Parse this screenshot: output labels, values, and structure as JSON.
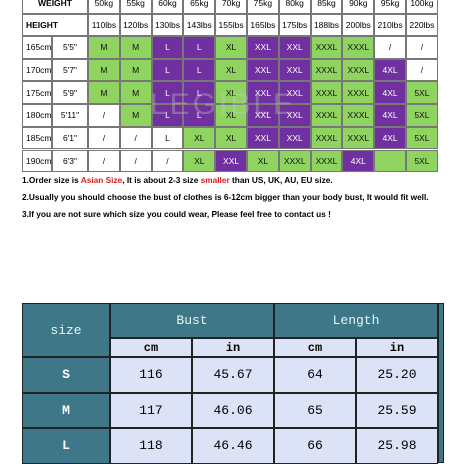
{
  "top_table": {
    "weight_label": "WEIGHT",
    "height_label": "HEIGHT",
    "weights": [
      "50kg",
      "55kg",
      "60kg",
      "65kg",
      "70kg",
      "75kg",
      "80kg",
      "85kg",
      "90kg",
      "95kg",
      "100kg"
    ],
    "lbs": [
      "110lbs",
      "120lbs",
      "130lbs",
      "143lbs",
      "155lbs",
      "165lbs",
      "175lbs",
      "188lbs",
      "200lbs",
      "210lbs",
      "220lbs"
    ],
    "rows": [
      {
        "cm": "165cm",
        "ft": "5'5\"",
        "sizes": [
          "M",
          "M",
          "L",
          "L",
          "XL",
          "XXL",
          "XXL",
          "XXXL",
          "XXXL",
          "/",
          "/"
        ],
        "colors": [
          "#8fd460",
          "#8fd460",
          "#7030a0",
          "#7030a0",
          "#8fd460",
          "#7030a0",
          "#7030a0",
          "#8fd460",
          "#8fd460",
          "#ffffff",
          "#ffffff"
        ]
      },
      {
        "cm": "170cm",
        "ft": "5'7\"",
        "sizes": [
          "M",
          "M",
          "L",
          "L",
          "XL",
          "XXL",
          "XXL",
          "XXXL",
          "XXXL",
          "4XL",
          "/"
        ],
        "colors": [
          "#8fd460",
          "#8fd460",
          "#7030a0",
          "#7030a0",
          "#8fd460",
          "#7030a0",
          "#7030a0",
          "#8fd460",
          "#8fd460",
          "#7030a0",
          "#ffffff"
        ]
      },
      {
        "cm": "175cm",
        "ft": "5'9\"",
        "sizes": [
          "M",
          "M",
          "L",
          "L",
          "XL",
          "XXL",
          "XXL",
          "XXXL",
          "XXXL",
          "4XL",
          "5XL"
        ],
        "colors": [
          "#8fd460",
          "#8fd460",
          "#7030a0",
          "#7030a0",
          "#8fd460",
          "#7030a0",
          "#7030a0",
          "#8fd460",
          "#8fd460",
          "#7030a0",
          "#8fd460"
        ]
      },
      {
        "cm": "180cm",
        "ft": "5'11\"",
        "sizes": [
          "/",
          "M",
          "L",
          "L",
          "XL",
          "XXL",
          "XXL",
          "XXXL",
          "XXXL",
          "4XL",
          "5XL"
        ],
        "colors": [
          "#ffffff",
          "#8fd460",
          "#7030a0",
          "#7030a0",
          "#8fd460",
          "#7030a0",
          "#7030a0",
          "#8fd460",
          "#8fd460",
          "#7030a0",
          "#8fd460"
        ]
      },
      {
        "cm": "185cm",
        "ft": "6'1\"",
        "sizes": [
          "/",
          "/",
          "L",
          "XL",
          "XL",
          "XXL",
          "XXL",
          "XXXL",
          "XXXL",
          "4XL",
          "5XL"
        ],
        "colors": [
          "#ffffff",
          "#ffffff",
          "#ffffff",
          "#8fd460",
          "#8fd460",
          "#7030a0",
          "#7030a0",
          "#8fd460",
          "#8fd460",
          "#7030a0",
          "#8fd460"
        ]
      },
      {
        "cm": "190cm",
        "ft": "6'3\"",
        "sizes": [
          "/",
          "/",
          "/",
          "XL",
          "XXL",
          "XL",
          "XXXL",
          "XXXL",
          "4XL",
          null,
          "5XL"
        ],
        "colors": [
          "#ffffff",
          "#ffffff",
          "#ffffff",
          "#8fd460",
          "#7030a0",
          "#8fd460",
          "#8fd460",
          "#8fd460",
          "#7030a0",
          "#8fd460",
          "#8fd460"
        ]
      }
    ]
  },
  "watermark": "LEGIBLE",
  "notes": [
    [
      "1.Order size is ",
      "Asian Size",
      ", It is about 2-3 size ",
      "smaller",
      " than US, UK, AU, EU size."
    ],
    [
      "2.Usually you should choose the bust of clothes is 6-12cm bigger than your body bust, It would fit well."
    ],
    [
      "3.If you are not sure which size you could wear, Please feel free to contact us !"
    ]
  ],
  "size_table": {
    "headers": [
      "size",
      "Bust",
      "Length"
    ],
    "subheaders": [
      "cm",
      "in",
      "cm",
      "in"
    ],
    "rows": [
      {
        "size": "S",
        "values": [
          "116",
          "45.67",
          "64",
          "25.20"
        ]
      },
      {
        "size": "M",
        "values": [
          "117",
          "46.06",
          "65",
          "25.59"
        ]
      },
      {
        "size": "L",
        "values": [
          "118",
          "46.46",
          "66",
          "25.98"
        ]
      }
    ]
  }
}
